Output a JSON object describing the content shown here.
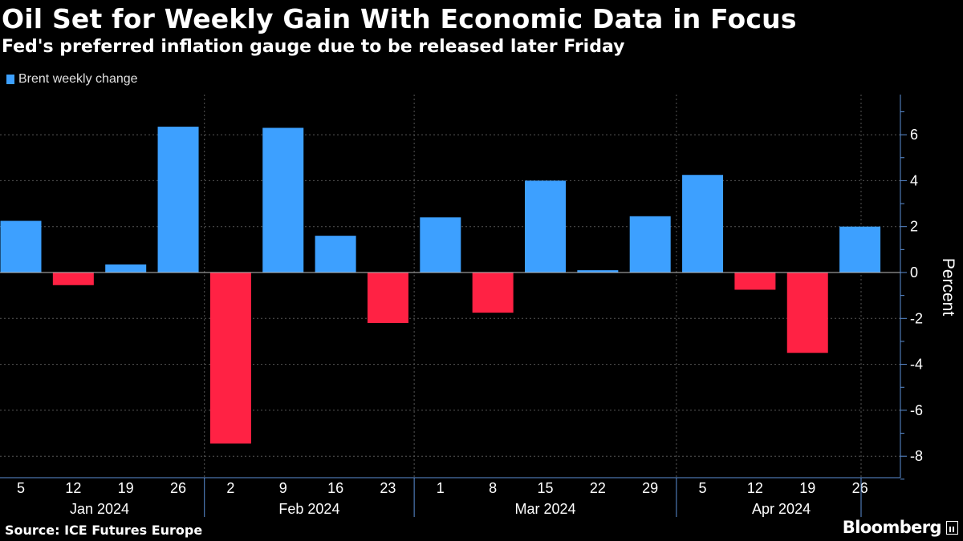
{
  "title": "Oil Set for Weekly Gain With Economic Data in Focus",
  "subtitle": "Fed's preferred inflation gauge due to be released later Friday",
  "source": "Source: ICE Futures Europe",
  "brand": "Bloomberg",
  "colors": {
    "positive": "#3da0ff",
    "negative": "#ff2244",
    "background": "#000000",
    "axis": "#5b8fd6",
    "text": "#ffffff"
  },
  "chart_data": {
    "type": "bar",
    "legend": [
      "Brent weekly change"
    ],
    "legend_position": "top-left",
    "ylabel": "Percent",
    "y_axis_side": "right",
    "ylim": [
      -9,
      7.8
    ],
    "yticks": [
      6,
      4,
      2,
      0,
      -2,
      -4,
      -6,
      -8
    ],
    "grid": "dotted",
    "categories": [
      "5",
      "12",
      "19",
      "26",
      "2",
      "9",
      "16",
      "23",
      "1",
      "8",
      "15",
      "22",
      "29",
      "5",
      "12",
      "19",
      "26"
    ],
    "months": [
      {
        "label": "Jan 2024",
        "start": 0,
        "end": 3
      },
      {
        "label": "Feb 2024",
        "start": 4,
        "end": 7
      },
      {
        "label": "Mar 2024",
        "start": 8,
        "end": 12
      },
      {
        "label": "Apr 2024",
        "start": 13,
        "end": 16
      }
    ],
    "series": [
      {
        "name": "Brent weekly change",
        "values": [
          2.25,
          -0.55,
          0.35,
          6.35,
          -7.45,
          6.3,
          1.6,
          -2.2,
          2.4,
          -1.75,
          4.0,
          0.1,
          2.45,
          4.25,
          -0.75,
          -3.5,
          2.0
        ]
      }
    ]
  }
}
